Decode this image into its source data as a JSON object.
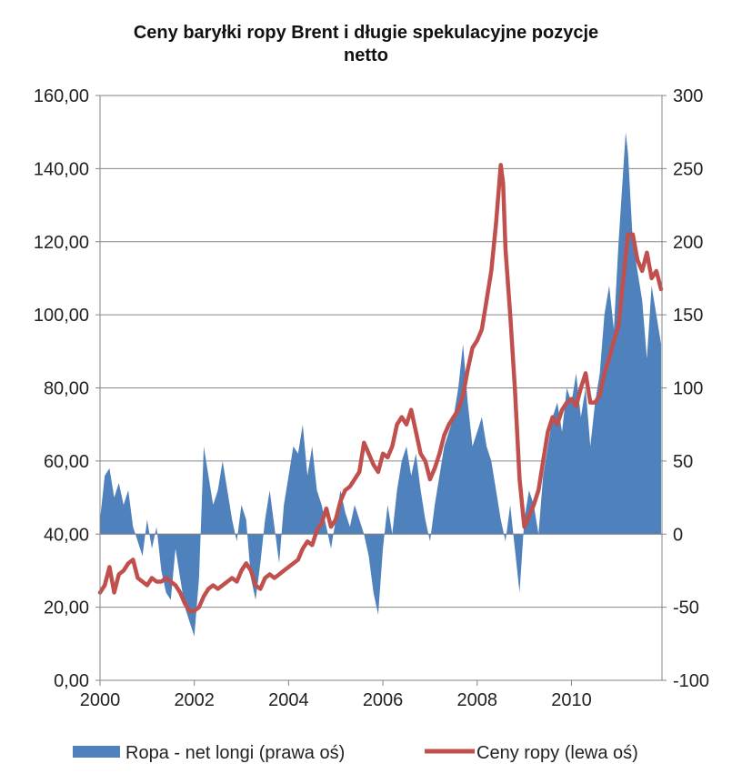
{
  "chart_data": {
    "type": "area",
    "title_lines": [
      "Ceny baryłki ropy Brent i długie spekulacyjne pozycje",
      "netto"
    ],
    "x_ticks": [
      "2000",
      "2002",
      "2004",
      "2006",
      "2008",
      "2010"
    ],
    "x_range": [
      2000.0,
      2011.92
    ],
    "left_axis": {
      "range": [
        0,
        160
      ],
      "ticks": [
        "0,00",
        "20,00",
        "40,00",
        "60,00",
        "80,00",
        "100,00",
        "120,00",
        "140,00",
        "160,00"
      ]
    },
    "right_axis": {
      "range": [
        -100,
        300
      ],
      "ticks": [
        "-100",
        "-50",
        "0",
        "50",
        "100",
        "150",
        "200",
        "250",
        "300"
      ]
    },
    "grid": "horizontal",
    "legend_position": "bottom",
    "series": [
      {
        "name": "Ropa - net longi (prawa oś)",
        "type": "area",
        "axis": "right",
        "color": "#4f81bd",
        "points": [
          [
            2000.0,
            10
          ],
          [
            2000.1,
            40
          ],
          [
            2000.2,
            45
          ],
          [
            2000.3,
            25
          ],
          [
            2000.4,
            35
          ],
          [
            2000.5,
            20
          ],
          [
            2000.6,
            30
          ],
          [
            2000.7,
            5
          ],
          [
            2000.8,
            -5
          ],
          [
            2000.9,
            -15
          ],
          [
            2001.0,
            10
          ],
          [
            2001.1,
            -10
          ],
          [
            2001.2,
            5
          ],
          [
            2001.3,
            -25
          ],
          [
            2001.4,
            -40
          ],
          [
            2001.5,
            -45
          ],
          [
            2001.6,
            -10
          ],
          [
            2001.7,
            -30
          ],
          [
            2001.8,
            -50
          ],
          [
            2001.9,
            -60
          ],
          [
            2002.0,
            -70
          ],
          [
            2002.1,
            -30
          ],
          [
            2002.2,
            60
          ],
          [
            2002.3,
            40
          ],
          [
            2002.4,
            20
          ],
          [
            2002.5,
            30
          ],
          [
            2002.6,
            50
          ],
          [
            2002.7,
            30
          ],
          [
            2002.8,
            10
          ],
          [
            2002.9,
            -5
          ],
          [
            2003.0,
            20
          ],
          [
            2003.1,
            10
          ],
          [
            2003.2,
            -30
          ],
          [
            2003.3,
            -45
          ],
          [
            2003.4,
            -20
          ],
          [
            2003.5,
            10
          ],
          [
            2003.6,
            30
          ],
          [
            2003.7,
            5
          ],
          [
            2003.8,
            -20
          ],
          [
            2003.9,
            20
          ],
          [
            2004.0,
            40
          ],
          [
            2004.1,
            60
          ],
          [
            2004.2,
            55
          ],
          [
            2004.3,
            75
          ],
          [
            2004.4,
            40
          ],
          [
            2004.5,
            60
          ],
          [
            2004.6,
            30
          ],
          [
            2004.7,
            20
          ],
          [
            2004.8,
            5
          ],
          [
            2004.9,
            -10
          ],
          [
            2005.0,
            10
          ],
          [
            2005.1,
            30
          ],
          [
            2005.2,
            15
          ],
          [
            2005.3,
            5
          ],
          [
            2005.4,
            20
          ],
          [
            2005.5,
            10
          ],
          [
            2005.6,
            0
          ],
          [
            2005.7,
            -15
          ],
          [
            2005.8,
            -40
          ],
          [
            2005.9,
            -55
          ],
          [
            2006.0,
            -10
          ],
          [
            2006.1,
            20
          ],
          [
            2006.2,
            0
          ],
          [
            2006.3,
            30
          ],
          [
            2006.4,
            50
          ],
          [
            2006.5,
            60
          ],
          [
            2006.6,
            40
          ],
          [
            2006.7,
            55
          ],
          [
            2006.8,
            30
          ],
          [
            2006.9,
            10
          ],
          [
            2007.0,
            -5
          ],
          [
            2007.1,
            20
          ],
          [
            2007.2,
            40
          ],
          [
            2007.3,
            60
          ],
          [
            2007.4,
            70
          ],
          [
            2007.5,
            80
          ],
          [
            2007.6,
            100
          ],
          [
            2007.7,
            130
          ],
          [
            2007.8,
            90
          ],
          [
            2007.9,
            60
          ],
          [
            2008.0,
            70
          ],
          [
            2008.1,
            80
          ],
          [
            2008.2,
            60
          ],
          [
            2008.3,
            50
          ],
          [
            2008.4,
            30
          ],
          [
            2008.5,
            10
          ],
          [
            2008.6,
            -5
          ],
          [
            2008.7,
            20
          ],
          [
            2008.8,
            -10
          ],
          [
            2008.9,
            -40
          ],
          [
            2009.0,
            10
          ],
          [
            2009.1,
            30
          ],
          [
            2009.2,
            20
          ],
          [
            2009.3,
            0
          ],
          [
            2009.4,
            40
          ],
          [
            2009.5,
            60
          ],
          [
            2009.6,
            80
          ],
          [
            2009.7,
            90
          ],
          [
            2009.8,
            70
          ],
          [
            2009.9,
            100
          ],
          [
            2010.0,
            90
          ],
          [
            2010.1,
            110
          ],
          [
            2010.2,
            80
          ],
          [
            2010.3,
            100
          ],
          [
            2010.4,
            60
          ],
          [
            2010.5,
            90
          ],
          [
            2010.6,
            110
          ],
          [
            2010.7,
            150
          ],
          [
            2010.8,
            170
          ],
          [
            2010.9,
            140
          ],
          [
            2011.0,
            200
          ],
          [
            2011.1,
            250
          ],
          [
            2011.15,
            275
          ],
          [
            2011.2,
            260
          ],
          [
            2011.3,
            200
          ],
          [
            2011.4,
            180
          ],
          [
            2011.5,
            160
          ],
          [
            2011.6,
            120
          ],
          [
            2011.7,
            170
          ],
          [
            2011.8,
            150
          ],
          [
            2011.9,
            130
          ]
        ]
      },
      {
        "name": "Ceny ropy (lewa oś)",
        "type": "line",
        "axis": "left",
        "color": "#c0504d",
        "points": [
          [
            2000.0,
            24
          ],
          [
            2000.1,
            26
          ],
          [
            2000.2,
            31
          ],
          [
            2000.3,
            24
          ],
          [
            2000.4,
            29
          ],
          [
            2000.5,
            30
          ],
          [
            2000.6,
            32
          ],
          [
            2000.7,
            33
          ],
          [
            2000.8,
            28
          ],
          [
            2000.9,
            27
          ],
          [
            2001.0,
            26
          ],
          [
            2001.1,
            28
          ],
          [
            2001.2,
            27
          ],
          [
            2001.3,
            27
          ],
          [
            2001.4,
            28
          ],
          [
            2001.5,
            27
          ],
          [
            2001.6,
            26
          ],
          [
            2001.7,
            24
          ],
          [
            2001.8,
            21
          ],
          [
            2001.9,
            19
          ],
          [
            2002.0,
            19
          ],
          [
            2002.1,
            20
          ],
          [
            2002.2,
            23
          ],
          [
            2002.3,
            25
          ],
          [
            2002.4,
            26
          ],
          [
            2002.5,
            25
          ],
          [
            2002.6,
            26
          ],
          [
            2002.7,
            27
          ],
          [
            2002.8,
            28
          ],
          [
            2002.9,
            27
          ],
          [
            2003.0,
            30
          ],
          [
            2003.1,
            32
          ],
          [
            2003.2,
            30
          ],
          [
            2003.3,
            26
          ],
          [
            2003.4,
            25
          ],
          [
            2003.5,
            28
          ],
          [
            2003.6,
            29
          ],
          [
            2003.7,
            28
          ],
          [
            2003.8,
            29
          ],
          [
            2003.9,
            30
          ],
          [
            2004.0,
            31
          ],
          [
            2004.1,
            32
          ],
          [
            2004.2,
            33
          ],
          [
            2004.3,
            36
          ],
          [
            2004.4,
            38
          ],
          [
            2004.5,
            37
          ],
          [
            2004.6,
            41
          ],
          [
            2004.7,
            43
          ],
          [
            2004.8,
            47
          ],
          [
            2004.9,
            42
          ],
          [
            2005.0,
            44
          ],
          [
            2005.1,
            49
          ],
          [
            2005.2,
            52
          ],
          [
            2005.3,
            53
          ],
          [
            2005.4,
            55
          ],
          [
            2005.5,
            57
          ],
          [
            2005.6,
            65
          ],
          [
            2005.7,
            62
          ],
          [
            2005.8,
            59
          ],
          [
            2005.9,
            57
          ],
          [
            2006.0,
            62
          ],
          [
            2006.1,
            61
          ],
          [
            2006.2,
            64
          ],
          [
            2006.3,
            70
          ],
          [
            2006.4,
            72
          ],
          [
            2006.5,
            70
          ],
          [
            2006.6,
            74
          ],
          [
            2006.7,
            68
          ],
          [
            2006.8,
            62
          ],
          [
            2006.9,
            60
          ],
          [
            2007.0,
            55
          ],
          [
            2007.1,
            58
          ],
          [
            2007.2,
            62
          ],
          [
            2007.3,
            67
          ],
          [
            2007.4,
            70
          ],
          [
            2007.5,
            72
          ],
          [
            2007.6,
            74
          ],
          [
            2007.7,
            78
          ],
          [
            2007.8,
            85
          ],
          [
            2007.9,
            91
          ],
          [
            2008.0,
            93
          ],
          [
            2008.1,
            96
          ],
          [
            2008.2,
            104
          ],
          [
            2008.3,
            112
          ],
          [
            2008.4,
            125
          ],
          [
            2008.5,
            141
          ],
          [
            2008.55,
            136
          ],
          [
            2008.6,
            118
          ],
          [
            2008.7,
            100
          ],
          [
            2008.8,
            80
          ],
          [
            2008.9,
            55
          ],
          [
            2009.0,
            42
          ],
          [
            2009.1,
            45
          ],
          [
            2009.2,
            48
          ],
          [
            2009.3,
            52
          ],
          [
            2009.4,
            60
          ],
          [
            2009.5,
            68
          ],
          [
            2009.6,
            72
          ],
          [
            2009.7,
            70
          ],
          [
            2009.8,
            74
          ],
          [
            2009.9,
            76
          ],
          [
            2010.0,
            77
          ],
          [
            2010.1,
            75
          ],
          [
            2010.2,
            80
          ],
          [
            2010.3,
            84
          ],
          [
            2010.4,
            76
          ],
          [
            2010.5,
            76
          ],
          [
            2010.6,
            78
          ],
          [
            2010.7,
            84
          ],
          [
            2010.8,
            88
          ],
          [
            2010.9,
            93
          ],
          [
            2011.0,
            97
          ],
          [
            2011.1,
            110
          ],
          [
            2011.2,
            122
          ],
          [
            2011.3,
            122
          ],
          [
            2011.4,
            115
          ],
          [
            2011.5,
            112
          ],
          [
            2011.6,
            117
          ],
          [
            2011.7,
            110
          ],
          [
            2011.8,
            112
          ],
          [
            2011.9,
            107
          ]
        ]
      }
    ]
  }
}
